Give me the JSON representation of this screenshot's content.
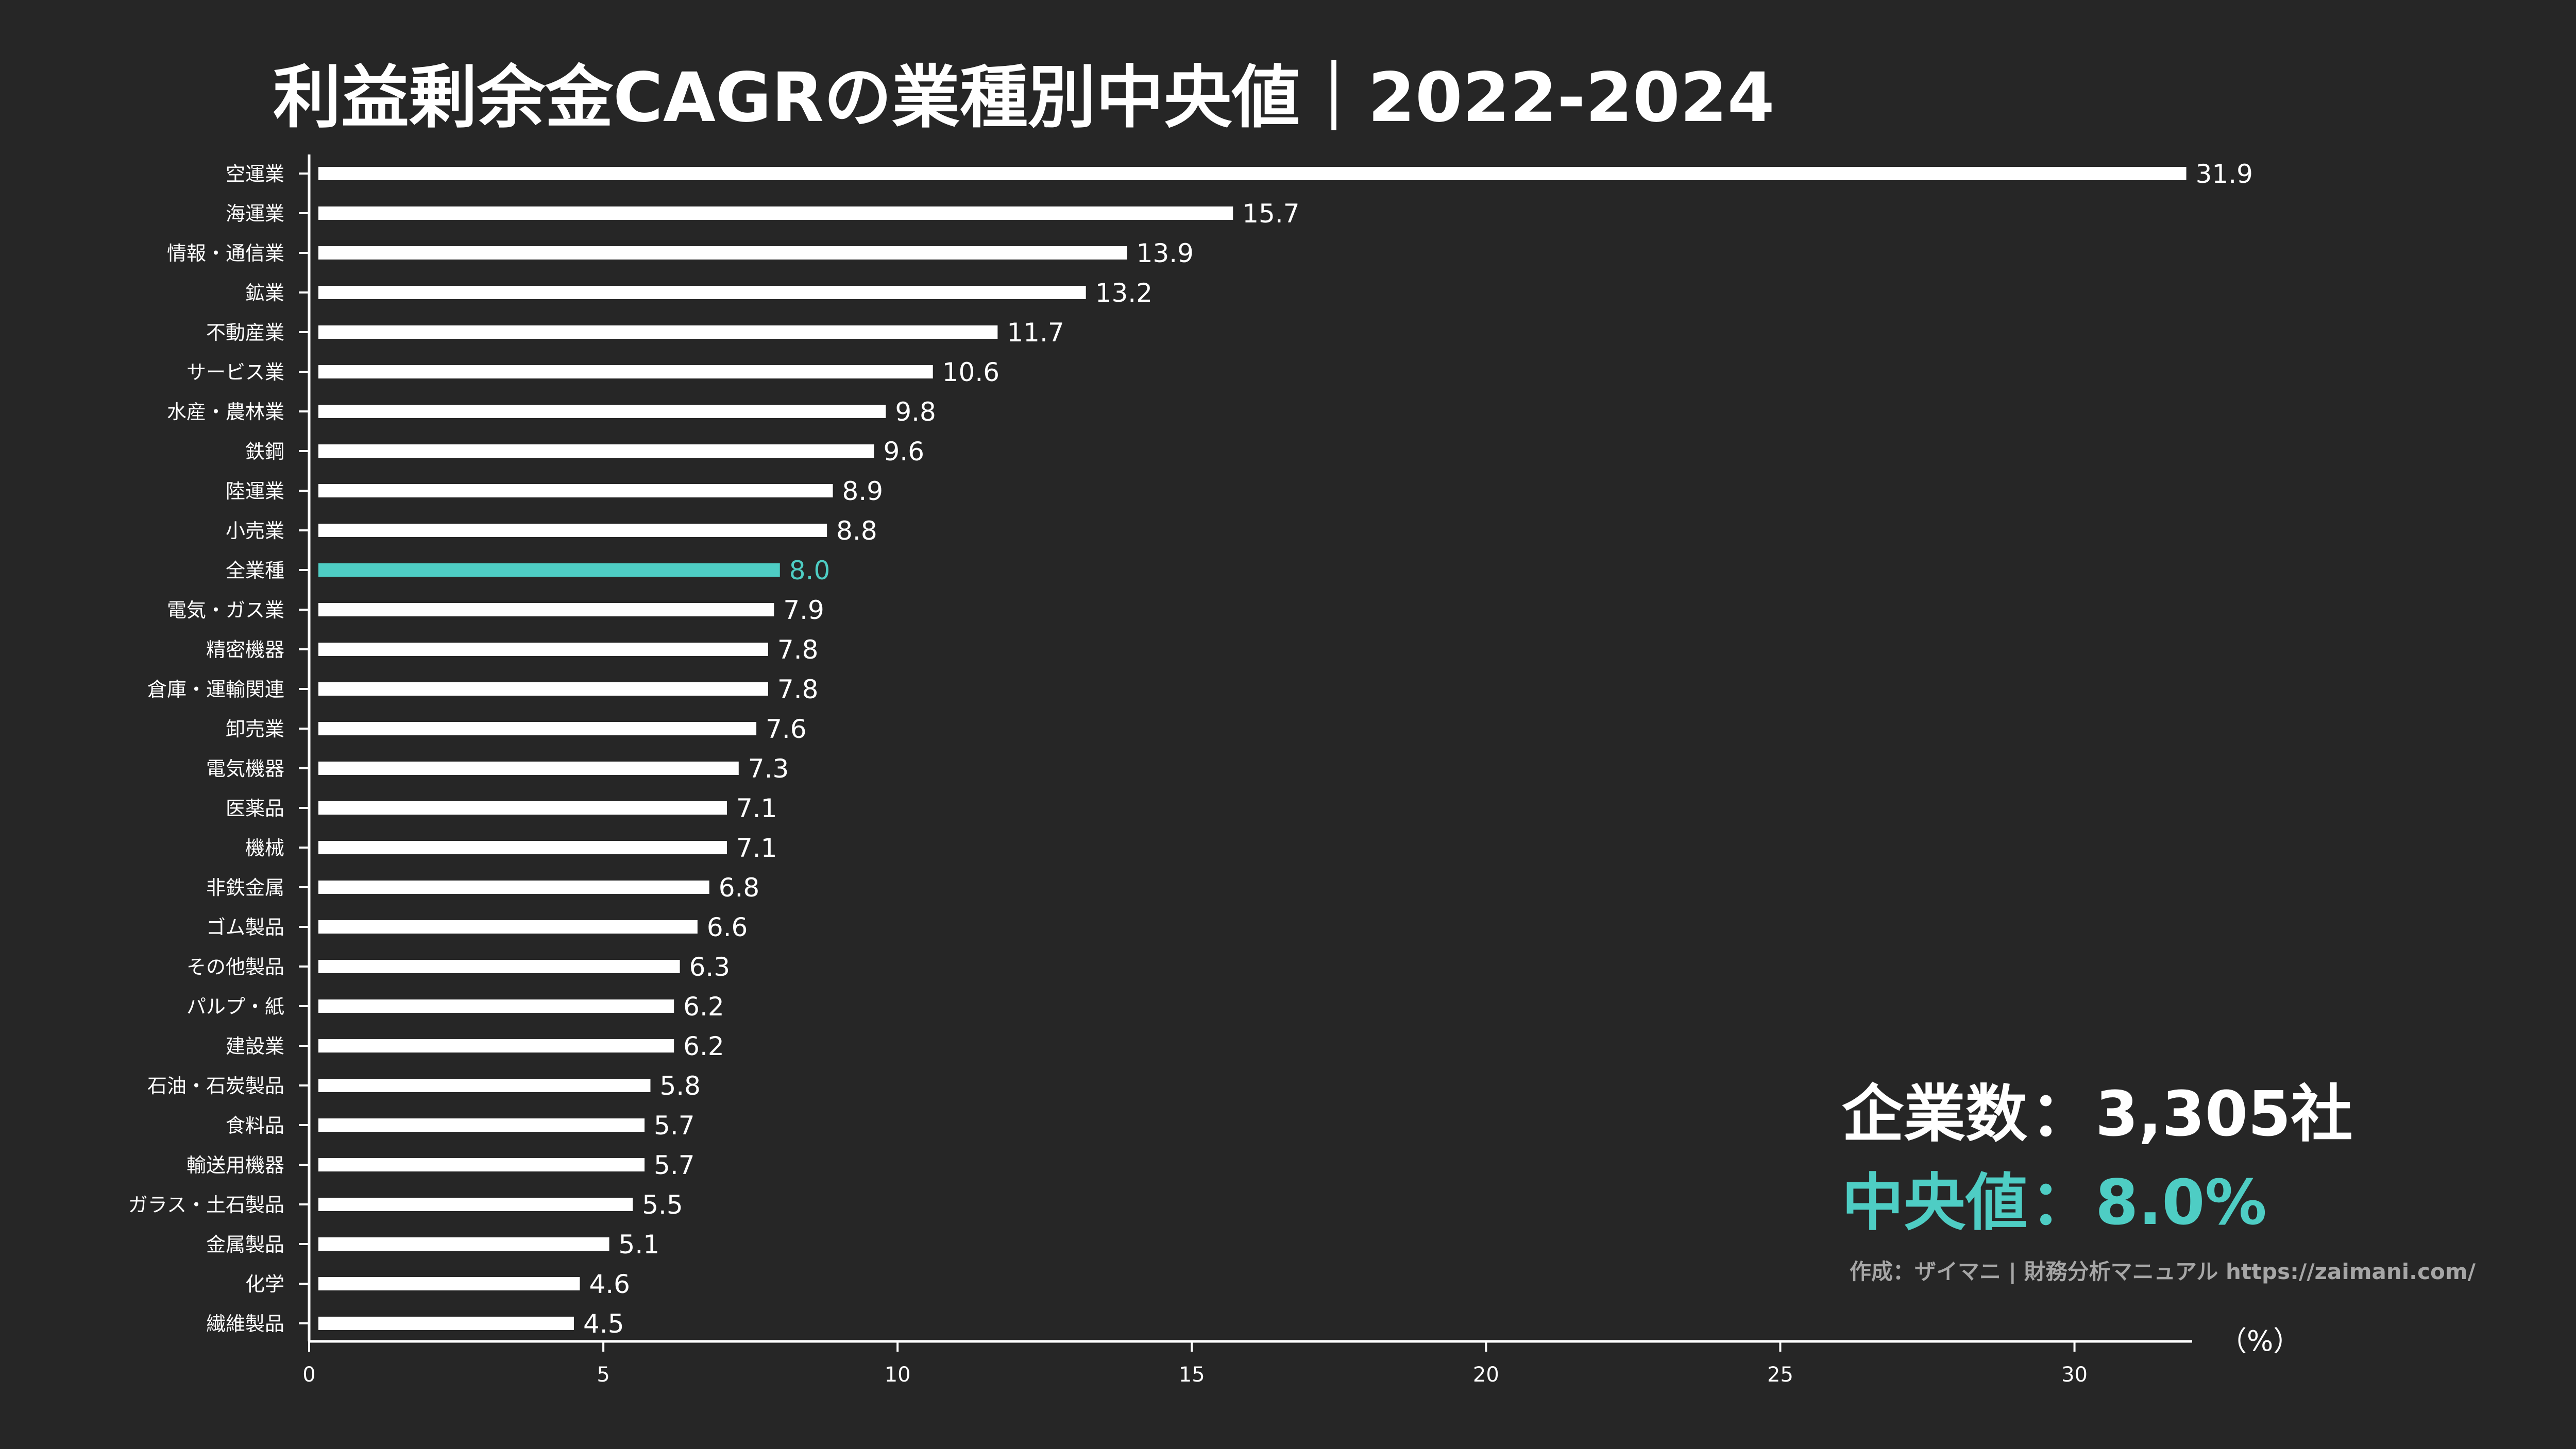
{
  "title": "利益剰余金CAGRの業種別中央値｜2022-2024",
  "summary": {
    "company_label": "企業数",
    "company_value": "3,305社",
    "median_label": "中央値",
    "median_value": "8.0%",
    "separator": "："
  },
  "credit": "作成：ザイマニ | 財務分析マニュアル https://zaimani.com/",
  "colors": {
    "background": "#262626",
    "bar": "#ffffff",
    "highlight": "#4ecdc4",
    "axis": "#ffffff",
    "credit": "#a6a6a6"
  },
  "chart_data": {
    "type": "bar",
    "orientation": "horizontal",
    "title": "利益剰余金CAGRの業種別中央値｜2022-2024",
    "xlabel": "（%）",
    "ylabel": "",
    "xlim": [
      0,
      32
    ],
    "x_ticks": [
      0,
      5,
      10,
      15,
      20,
      25,
      30
    ],
    "grid": false,
    "highlight_category": "全業種",
    "categories": [
      "空運業",
      "海運業",
      "情報・通信業",
      "鉱業",
      "不動産業",
      "サービス業",
      "水産・農林業",
      "鉄鋼",
      "陸運業",
      "小売業",
      "全業種",
      "電気・ガス業",
      "精密機器",
      "倉庫・運輸関連",
      "卸売業",
      "電気機器",
      "医薬品",
      "機械",
      "非鉄金属",
      "ゴム製品",
      "その他製品",
      "パルプ・紙",
      "建設業",
      "石油・石炭製品",
      "食料品",
      "輸送用機器",
      "ガラス・土石製品",
      "金属製品",
      "化学",
      "繊維製品"
    ],
    "values": [
      31.9,
      15.7,
      13.9,
      13.2,
      11.7,
      10.6,
      9.8,
      9.6,
      8.9,
      8.8,
      8.0,
      7.9,
      7.8,
      7.8,
      7.6,
      7.3,
      7.1,
      7.1,
      6.8,
      6.6,
      6.3,
      6.2,
      6.2,
      5.8,
      5.7,
      5.7,
      5.5,
      5.1,
      4.6,
      4.5
    ],
    "value_labels": [
      "31.9",
      "15.7",
      "13.9",
      "13.2",
      "11.7",
      "10.6",
      "9.8",
      "9.6",
      "8.9",
      "8.8",
      "8.0",
      "7.9",
      "7.8",
      "7.8",
      "7.6",
      "7.3",
      "7.1",
      "7.1",
      "6.8",
      "6.6",
      "6.3",
      "6.2",
      "6.2",
      "5.8",
      "5.7",
      "5.7",
      "5.5",
      "5.1",
      "4.6",
      "4.5"
    ]
  }
}
